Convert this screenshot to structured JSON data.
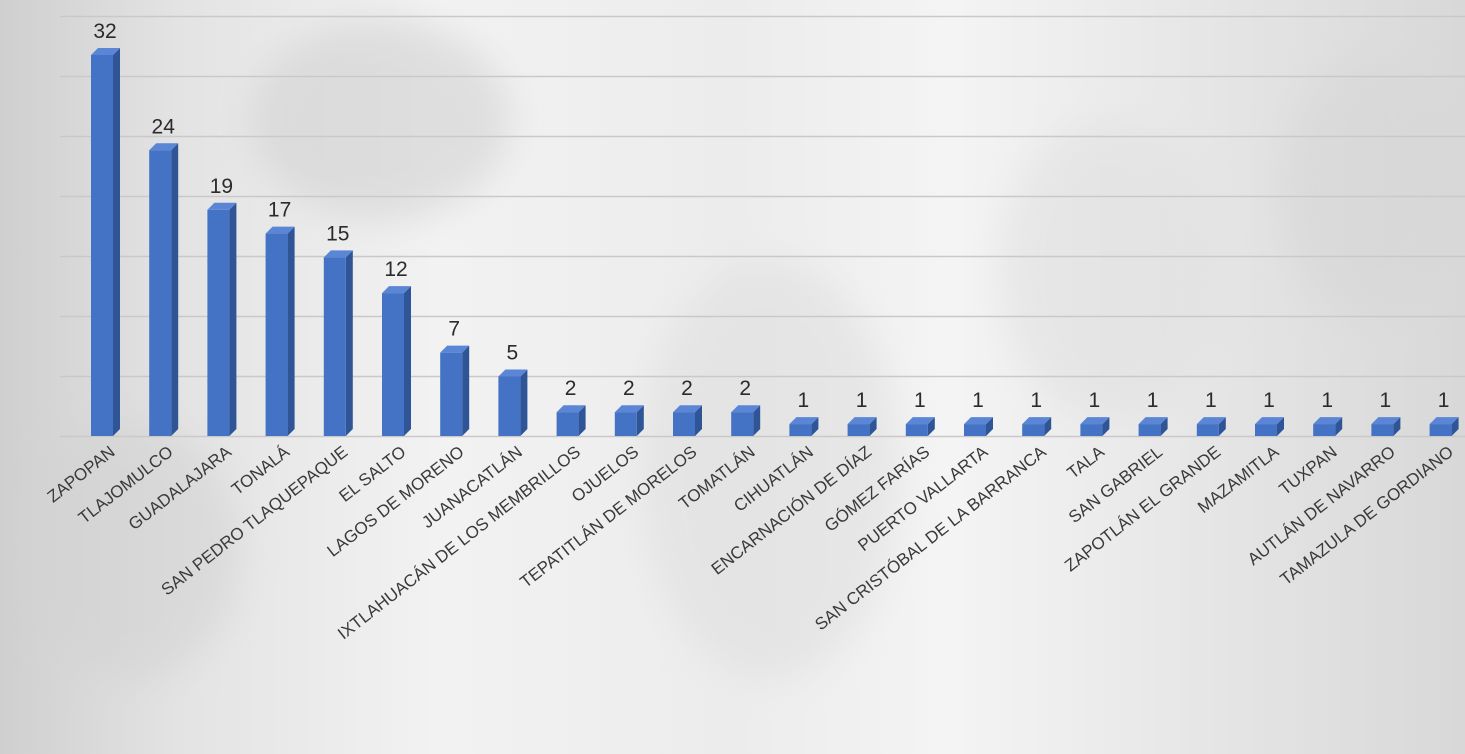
{
  "chart_data": {
    "type": "bar",
    "title": "",
    "xlabel": "",
    "ylabel": "",
    "ylim": [
      0,
      35
    ],
    "grid": true,
    "legend": "none",
    "categories": [
      "ZAPOPAN",
      "TLAJOMULCO",
      "GUADALAJARA",
      "TONALÁ",
      "SAN PEDRO TLAQUEPAQUE",
      "EL SALTO",
      "LAGOS DE MORENO",
      "JUANACATLÁN",
      "IXTLAHUACÁN DE LOS MEMBRILLOS",
      "OJUELOS",
      "TEPATITLÁN DE MORELOS",
      "TOMATLÁN",
      "CIHUATLÁN",
      "ENCARNACIÓN DE DÍAZ",
      "GÓMEZ FARÍAS",
      "PUERTO VALLARTA",
      "SAN CRISTÓBAL DE LA BARRANCA",
      "TALA",
      "SAN GABRIEL",
      "ZAPOTLÁN EL GRANDE",
      "MAZAMITLA",
      "TUXPAN",
      "AUTLÁN DE NAVARRO",
      "TAMAZULA DE GORDIANO"
    ],
    "values": [
      32,
      24,
      19,
      17,
      15,
      12,
      7,
      5,
      2,
      2,
      2,
      2,
      1,
      1,
      1,
      1,
      1,
      1,
      1,
      1,
      1,
      1,
      1,
      1
    ],
    "data_labels": [
      "32",
      "24",
      "19",
      "17",
      "15",
      "12",
      "7",
      "5",
      "2",
      "2",
      "2",
      "2",
      "1",
      "1",
      "1",
      "1",
      "1",
      "1",
      "1",
      "1",
      "1",
      "1",
      "1",
      "1"
    ],
    "colors": {
      "bar_front": "#4472c4",
      "bar_side": "#2f5597",
      "bar_top": "#5b86d6",
      "gridline": "#c9c9c9"
    }
  }
}
